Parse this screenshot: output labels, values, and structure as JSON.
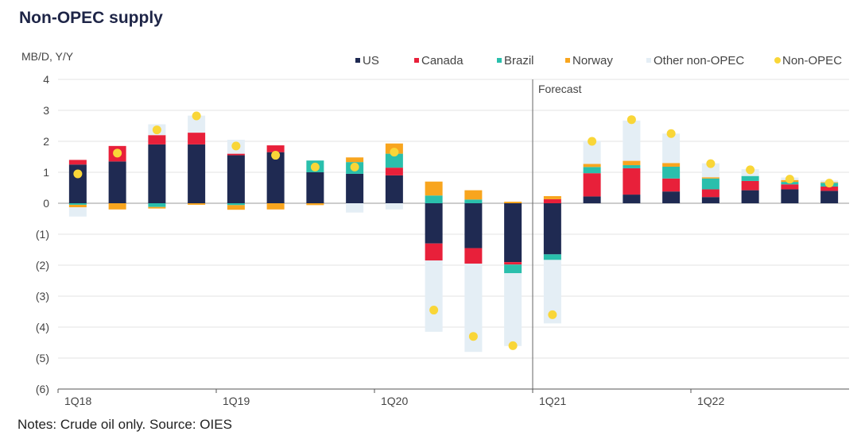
{
  "title": "Non-OPEC supply",
  "notes": "Notes: Crude oil only. Source: OIES",
  "chart_data": {
    "type": "bar",
    "stacked": true,
    "ylabel": "MB/D, Y/Y",
    "ylim": [
      -6,
      4
    ],
    "y_ticks": [
      4,
      3,
      2,
      1,
      0,
      -1,
      -2,
      -3,
      -4,
      -5,
      -6
    ],
    "y_tick_labels": [
      "4",
      "3",
      "2",
      "1",
      "0",
      "(1)",
      "(2)",
      "(3)",
      "(4)",
      "(5)",
      "(6)"
    ],
    "categories": [
      "1Q18",
      "2Q18",
      "3Q18",
      "4Q18",
      "1Q19",
      "2Q19",
      "3Q19",
      "4Q19",
      "1Q20",
      "2Q20",
      "3Q20",
      "4Q20",
      "1Q21",
      "2Q21",
      "3Q21",
      "4Q21",
      "1Q22",
      "2Q22",
      "3Q22",
      "4Q22"
    ],
    "x_tick_labels": [
      {
        "category": "1Q18",
        "label": "1Q18"
      },
      {
        "category": "1Q19",
        "label": "1Q19"
      },
      {
        "category": "1Q20",
        "label": "1Q20"
      },
      {
        "category": "1Q21",
        "label": "1Q21"
      },
      {
        "category": "1Q22",
        "label": "1Q22"
      }
    ],
    "annotation": {
      "label": "Forecast",
      "before_category": "1Q21"
    },
    "grid": true,
    "legend_position": "top",
    "series": [
      {
        "name": "US",
        "color": "#1f2a52",
        "marker": "square",
        "values": [
          1.25,
          1.35,
          1.9,
          1.9,
          1.55,
          1.65,
          1.0,
          0.95,
          0.9,
          -1.3,
          -1.45,
          -1.9,
          -1.65,
          0.22,
          0.28,
          0.38,
          0.2,
          0.42,
          0.45,
          0.4
        ]
      },
      {
        "name": "Canada",
        "color": "#e8203a",
        "marker": "square",
        "values": [
          0.15,
          0.5,
          0.3,
          0.38,
          0.05,
          0.22,
          0.0,
          0.0,
          0.25,
          -0.55,
          -0.5,
          -0.08,
          0.13,
          0.75,
          0.85,
          0.42,
          0.25,
          0.3,
          0.16,
          0.14
        ]
      },
      {
        "name": "Brazil",
        "color": "#2abfac",
        "marker": "square",
        "values": [
          -0.05,
          0.0,
          -0.12,
          0.0,
          -0.06,
          0.0,
          0.38,
          0.38,
          0.45,
          0.25,
          0.12,
          -0.28,
          -0.18,
          0.2,
          0.1,
          0.38,
          0.35,
          0.16,
          0.08,
          0.12
        ]
      },
      {
        "name": "Norway",
        "color": "#f8a51e",
        "marker": "square",
        "values": [
          -0.08,
          -0.2,
          -0.05,
          -0.05,
          -0.15,
          -0.2,
          -0.06,
          0.15,
          0.33,
          0.45,
          0.3,
          0.05,
          0.1,
          0.1,
          0.14,
          0.12,
          0.04,
          0.0,
          0.06,
          0.02
        ]
      },
      {
        "name": "Other non-OPEC",
        "color": "#e4eef5",
        "marker": "square",
        "values": [
          -0.3,
          0.0,
          0.35,
          0.55,
          0.45,
          0.0,
          0.0,
          -0.3,
          -0.2,
          -2.3,
          -2.85,
          -2.35,
          -2.05,
          0.75,
          1.3,
          0.95,
          0.45,
          0.22,
          0.08,
          0.06
        ]
      },
      {
        "name": "Non-OPEC",
        "color": "#f9d638",
        "marker": "circle",
        "kind": "scatter",
        "values": [
          0.95,
          1.62,
          2.37,
          2.82,
          1.85,
          1.55,
          1.17,
          1.17,
          1.65,
          -3.45,
          -4.3,
          -4.6,
          -3.6,
          2.0,
          2.7,
          2.25,
          1.28,
          1.08,
          0.78,
          0.65
        ]
      }
    ]
  }
}
